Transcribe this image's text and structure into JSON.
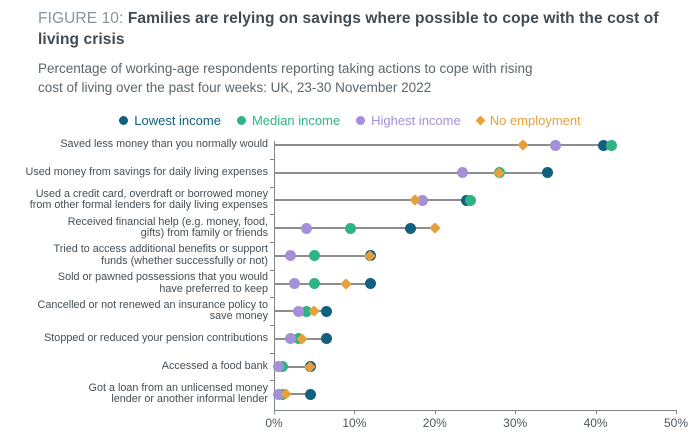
{
  "header": {
    "figure_label": "FIGURE 10: ",
    "title": "Families are relying on savings where possible to cope with the cost of living crisis",
    "subtitle": "Percentage of working-age respondents reporting taking actions to cope with rising\ncost of living over the past four weeks: UK, 23-30 November 2022"
  },
  "colors": {
    "lowest_income": "#10607e",
    "median_income": "#2eb483",
    "highest_income": "#a48fd9",
    "no_employment": "#e5a03c",
    "stem_gray": "#8d8d8d",
    "axis_gray": "#7f8487",
    "title_dark": "#414b54",
    "figure_label_gray": "#86949e",
    "subtitle_gray": "#5c666d"
  },
  "chart_data": {
    "type": "scatter",
    "subtype": "horizontal-dot-plot",
    "title": "Families are relying on savings where possible to cope with the cost of living crisis",
    "xlabel": "",
    "ylabel": "",
    "xlim": [
      0,
      50
    ],
    "grid": false,
    "legend_position": "top-center",
    "x_ticks": [
      {
        "value": 0,
        "label": "0%"
      },
      {
        "value": 10,
        "label": "10%"
      },
      {
        "value": 20,
        "label": "20%"
      },
      {
        "value": 30,
        "label": "30%"
      },
      {
        "value": 40,
        "label": "40%"
      },
      {
        "value": 50,
        "label": "50%"
      }
    ],
    "categories": [
      {
        "lines": [
          "Saved less money than you normally would"
        ]
      },
      {
        "lines": [
          "Used money from savings for daily living expenses"
        ]
      },
      {
        "lines": [
          "Used a credit card, overdraft or borrowed money",
          "from other formal lenders for daily living expenses"
        ]
      },
      {
        "lines": [
          "Received financial help (e.g. money, food,",
          "gifts) from family or friends"
        ]
      },
      {
        "lines": [
          "Tried to access additional benefits or support",
          "funds (whether successfully or not)"
        ]
      },
      {
        "lines": [
          "Sold or pawned possessions that you would",
          "have preferred to keep"
        ]
      },
      {
        "lines": [
          "Cancelled or not renewed an insurance policy to",
          "save money"
        ]
      },
      {
        "lines": [
          "Stopped or reduced your pension contributions"
        ]
      },
      {
        "lines": [
          "Accessed a food bank"
        ]
      },
      {
        "lines": [
          "Got a loan from an unlicensed money",
          "lender or another informal lender"
        ]
      }
    ],
    "series": [
      {
        "name": "Lowest income",
        "marker": "circle",
        "color": "#10607e",
        "values": [
          41,
          34,
          24,
          17,
          12,
          12,
          6.5,
          6.5,
          4.5,
          4.5
        ]
      },
      {
        "name": "Median income",
        "marker": "circle",
        "color": "#2eb483",
        "values": [
          42,
          28,
          24.5,
          9.5,
          5,
          5,
          4,
          3,
          1,
          1
        ]
      },
      {
        "name": "Highest income",
        "marker": "circle",
        "color": "#a48fd9",
        "values": [
          35,
          23.5,
          18.5,
          4,
          2,
          2.5,
          3,
          2,
          0.5,
          0.5
        ]
      },
      {
        "name": "No employment",
        "marker": "diamond",
        "color": "#e5a03c",
        "values": [
          31,
          28,
          17.5,
          20,
          12,
          9,
          5,
          3.5,
          4.5,
          1.5
        ]
      }
    ]
  }
}
